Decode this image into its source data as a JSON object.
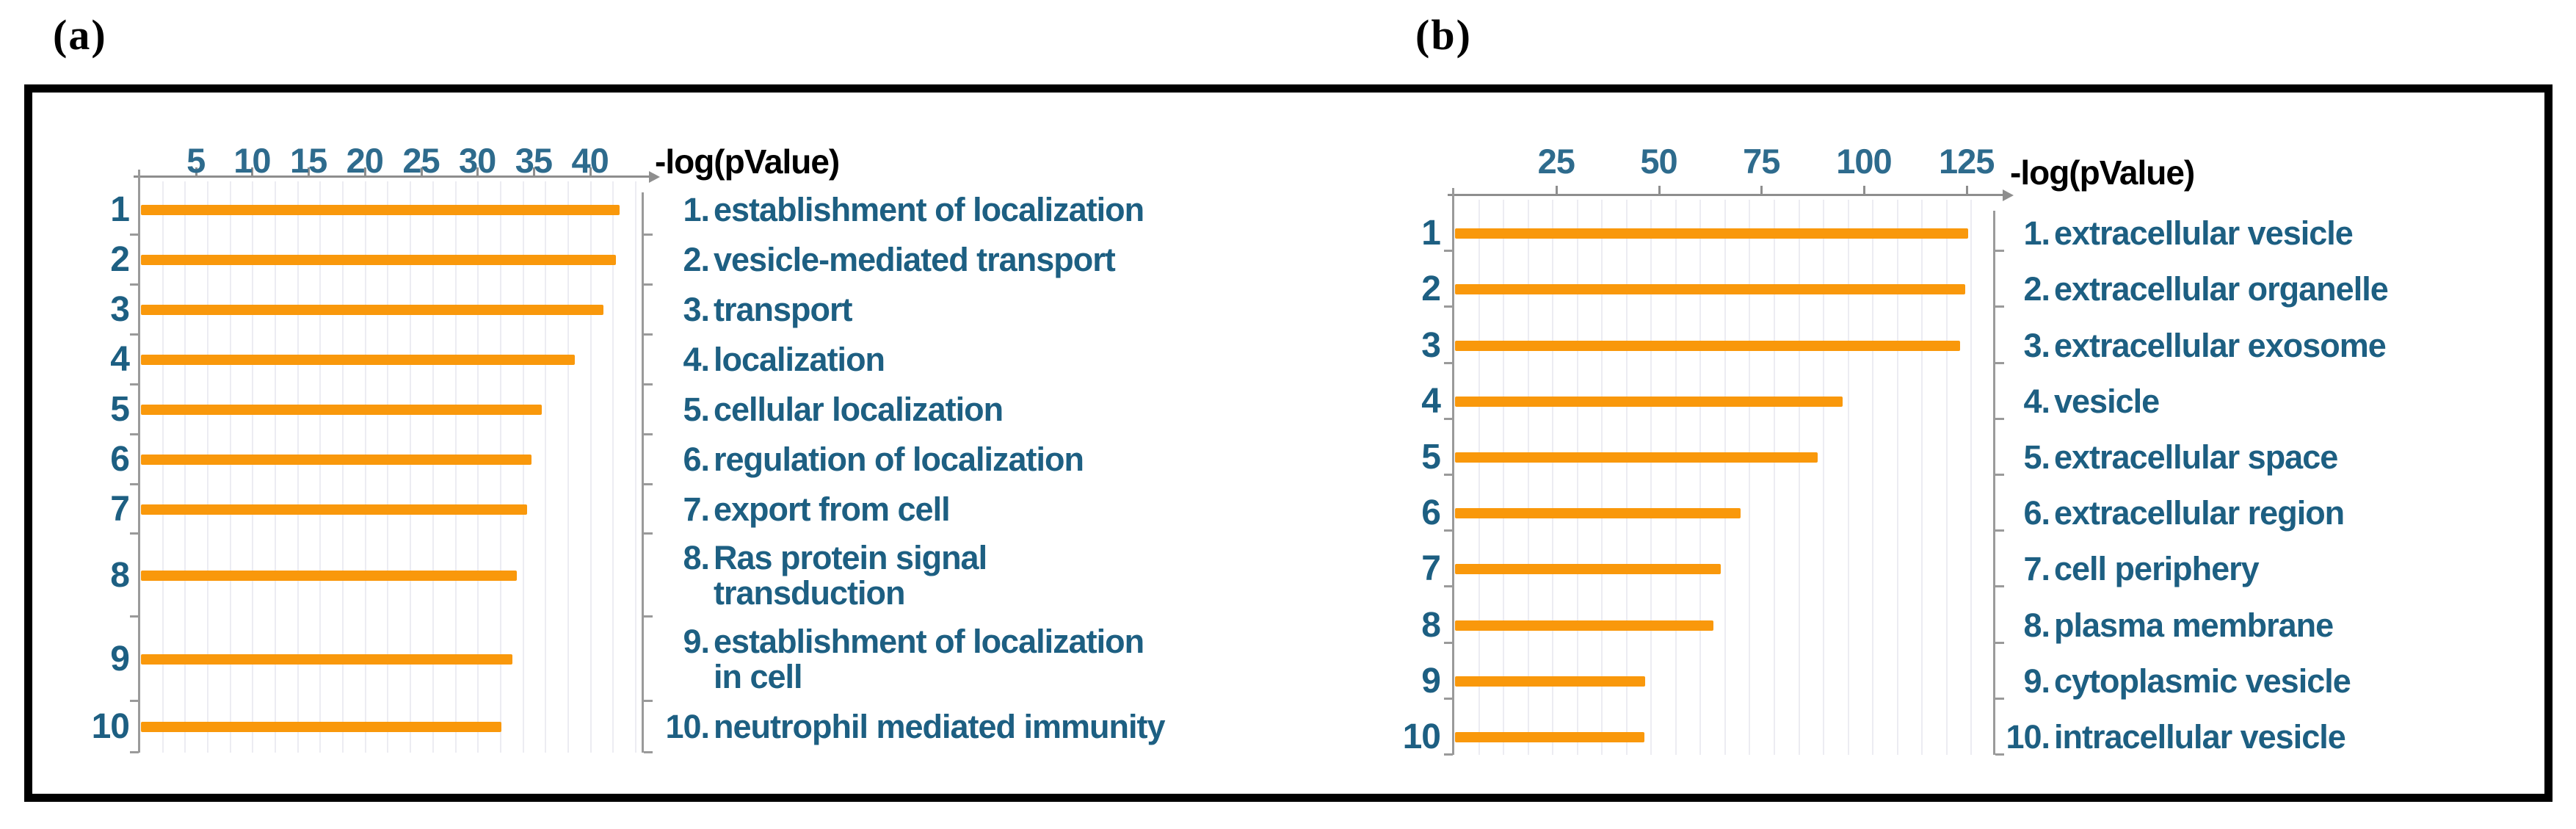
{
  "figure": {
    "panel_a_tag": "(a)",
    "panel_b_tag": "(b)"
  },
  "colors": {
    "bar": "#f9980b",
    "category_text": "#1d5f82",
    "rank_text": "#1d5f82",
    "tick_text": "#2e6b8d",
    "axis_line": "#8e8e8e",
    "grid_line": "#ececf2",
    "border": "#000000"
  },
  "chart_data": [
    {
      "id": "a",
      "type": "bar",
      "orientation": "horizontal",
      "title": "",
      "xlabel": "-log(pValue)",
      "ylabel": "",
      "x_ticks": [
        5,
        10,
        15,
        20,
        25,
        30,
        35,
        40
      ],
      "x_range": [
        0,
        45
      ],
      "grid": true,
      "legend": false,
      "ranks": [
        "1",
        "2",
        "3",
        "4",
        "5",
        "6",
        "7",
        "8",
        "9",
        "10"
      ],
      "categories": [
        [
          "establishment of localization"
        ],
        [
          "vesicle-mediated transport"
        ],
        [
          "transport"
        ],
        [
          "localization"
        ],
        [
          "cellular localization"
        ],
        [
          "regulation of localization"
        ],
        [
          "export from cell"
        ],
        [
          "Ras protein signal",
          "transduction"
        ],
        [
          "establishment of localization",
          "in cell"
        ],
        [
          "neutrophil mediated immunity"
        ]
      ],
      "values": [
        42.5,
        42.2,
        41.1,
        38.5,
        35.6,
        34.7,
        34.3,
        33.4,
        33.0,
        32.0
      ]
    },
    {
      "id": "b",
      "type": "bar",
      "orientation": "horizontal",
      "title": "",
      "xlabel": "-log(pValue)",
      "ylabel": "",
      "x_ticks": [
        25,
        50,
        75,
        100,
        125
      ],
      "x_range": [
        0,
        133
      ],
      "grid": true,
      "legend": false,
      "ranks": [
        "1",
        "2",
        "3",
        "4",
        "5",
        "6",
        "7",
        "8",
        "9",
        "10"
      ],
      "categories": [
        [
          "extracellular vesicle"
        ],
        [
          "extracellular organelle"
        ],
        [
          "extracellular exosome"
        ],
        [
          "vesicle"
        ],
        [
          "extracellular space"
        ],
        [
          "extracellular region"
        ],
        [
          "cell periphery"
        ],
        [
          "plasma membrane"
        ],
        [
          "cytoplasmic vesicle"
        ],
        [
          "intracellular vesicle"
        ]
      ],
      "values": [
        125.0,
        124.3,
        123.0,
        94.5,
        88.4,
        69.5,
        64.8,
        62.9,
        46.4,
        46.1
      ]
    }
  ]
}
